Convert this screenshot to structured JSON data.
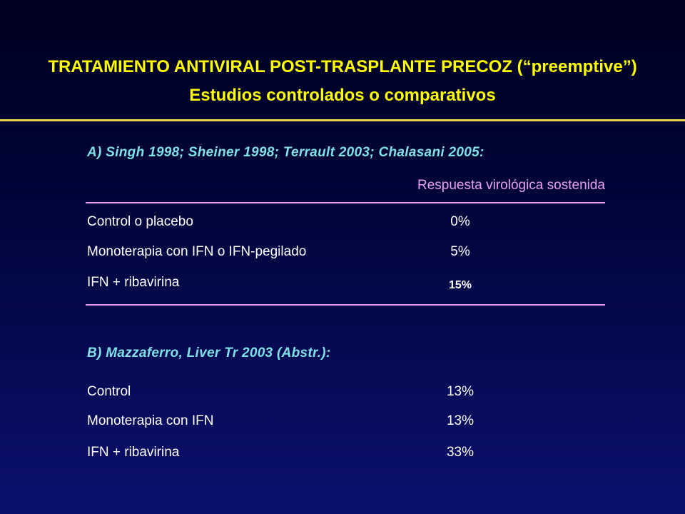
{
  "slide": {
    "title_line1": "TRATAMIENTO ANTIVIRAL POST-TRASPLANTE PRECOZ (“preemptive”)",
    "title_line2": "Estudios controlados o comparativos",
    "colors": {
      "title": "#ffff00",
      "section_heading": "#7fe0e8",
      "column_header": "#e8a0f0",
      "body_text": "#ffffff",
      "background_top": "#000020",
      "background_bottom": "#0b106e"
    }
  },
  "section_a": {
    "heading": "A) Singh 1998; Sheiner 1998; Terrault 2003; Chalasani 2005:",
    "column_header": "Respuesta virológica sostenida",
    "rows": [
      {
        "label": "Control o placebo",
        "value": "0%"
      },
      {
        "label": "Monoterapia con IFN o IFN-pegilado",
        "value": "5%"
      },
      {
        "label": "IFN + ribavirina",
        "value": "15%"
      }
    ]
  },
  "section_b": {
    "heading": "B) Mazzaferro, Liver Tr 2003 (Abstr.):",
    "rows": [
      {
        "label": "Control",
        "value": "13%"
      },
      {
        "label": "Monoterapia con IFN",
        "value": "13%"
      },
      {
        "label": "IFN + ribavirina",
        "value": "33%"
      }
    ]
  }
}
